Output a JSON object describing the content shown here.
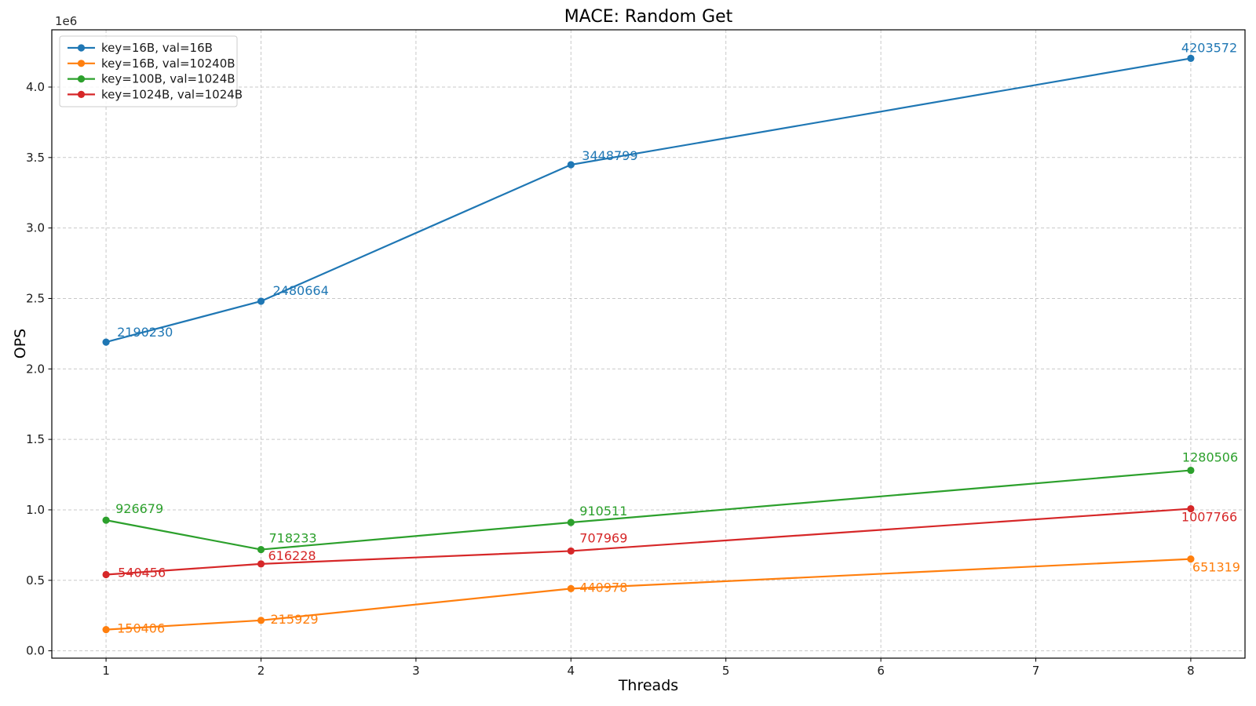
{
  "chart_data": {
    "type": "line",
    "title": "MACE: Random Get",
    "xlabel": "Threads",
    "ylabel": "OPS",
    "y_offset_label": "1e6",
    "x": [
      1,
      2,
      4,
      8
    ],
    "xlim": [
      0.65,
      8.35
    ],
    "ylim": [
      -52252,
      4406230
    ],
    "xticks": [
      "1",
      "2",
      "3",
      "4",
      "5",
      "6",
      "7",
      "8"
    ],
    "yticks": [
      "0.0",
      "0.5",
      "1.0",
      "1.5",
      "2.0",
      "2.5",
      "3.0",
      "3.5",
      "4.0"
    ],
    "ytick_scale": 1000000,
    "grid": true,
    "grid_color": "#c9c9c9",
    "background": "#ffffff",
    "legend_position": "upper left",
    "series": [
      {
        "name": "key=16B, val=16B",
        "color": "#1f77b4",
        "values": [
          2190230,
          2480664,
          3448799,
          4203572
        ],
        "point_labels": [
          "2190230",
          "2480664",
          "3448799",
          "4203572"
        ],
        "label_offsets": [
          [
            14,
            -7
          ],
          [
            15,
            -8
          ],
          [
            14,
            -6
          ],
          [
            -12,
            -8
          ]
        ]
      },
      {
        "name": "key=16B, val=10240B",
        "color": "#ff7f0e",
        "values": [
          150406,
          215929,
          440978,
          651319
        ],
        "point_labels": [
          "150406",
          "215929",
          "440978",
          "651319"
        ],
        "label_offsets": [
          [
            14,
            4
          ],
          [
            12,
            4
          ],
          [
            11,
            4
          ],
          [
            2,
            16
          ]
        ]
      },
      {
        "name": "key=100B, val=1024B",
        "color": "#2ca02c",
        "values": [
          926679,
          718233,
          910511,
          1280506
        ],
        "point_labels": [
          "926679",
          "718233",
          "910511",
          "1280506"
        ],
        "label_offsets": [
          [
            12,
            -9
          ],
          [
            10,
            -9
          ],
          [
            11,
            -9
          ],
          [
            -11,
            -11
          ]
        ]
      },
      {
        "name": "key=1024B, val=1024B",
        "color": "#d62728",
        "values": [
          540456,
          616228,
          707969,
          1007766
        ],
        "point_labels": [
          "540456",
          "616228",
          "707969",
          "1007766"
        ],
        "label_offsets": [
          [
            15,
            3
          ],
          [
            9,
            -5
          ],
          [
            11,
            -11
          ],
          [
            -12,
            16
          ]
        ]
      }
    ]
  }
}
